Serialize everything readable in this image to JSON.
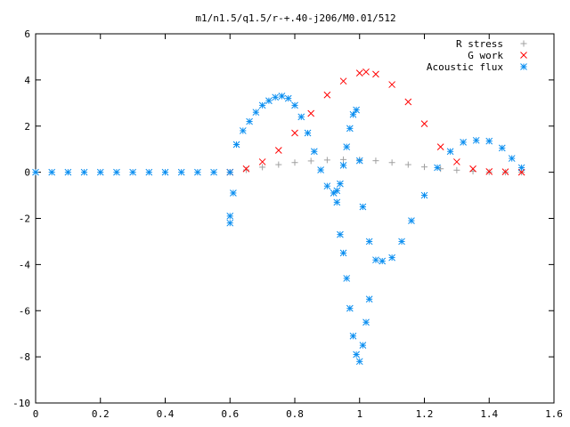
{
  "chart_data": {
    "type": "scatter",
    "title": "m1/n1.5/q1.5/r-+.40-j206/M0.01/512",
    "xlabel": "",
    "ylabel": "",
    "xlim": [
      0,
      1.6
    ],
    "ylim": [
      -10,
      6
    ],
    "x_ticks": [
      0,
      0.2,
      0.4,
      0.6,
      0.8,
      1,
      1.2,
      1.4,
      1.6
    ],
    "x_tick_labels": [
      "0",
      "0.2",
      "0.4",
      "0.6",
      "0.8",
      "1",
      "1.2",
      "1.4",
      "1.6"
    ],
    "y_ticks": [
      -10,
      -8,
      -6,
      -4,
      -2,
      0,
      2,
      4,
      6
    ],
    "y_tick_labels": [
      "-10",
      "-8",
      "-6",
      "-4",
      "-2",
      "0",
      "2",
      "4",
      "6"
    ],
    "grid": false,
    "legend_position": "top-right",
    "series": [
      {
        "name": "R stress",
        "marker": "+",
        "color": "#a0a0a0",
        "x": [
          0.6,
          0.65,
          0.7,
          0.75,
          0.8,
          0.85,
          0.9,
          0.95,
          1.0,
          1.05,
          1.1,
          1.15,
          1.2,
          1.25,
          1.3,
          1.35,
          1.4,
          1.45,
          1.5
        ],
        "y": [
          0.0,
          0.1,
          0.22,
          0.33,
          0.42,
          0.49,
          0.53,
          0.55,
          0.54,
          0.5,
          0.42,
          0.33,
          0.23,
          0.15,
          0.09,
          0.04,
          0.01,
          0.0,
          0.0
        ]
      },
      {
        "name": "G work",
        "marker": "x",
        "color": "#ff0000",
        "x": [
          0.6,
          0.65,
          0.7,
          0.75,
          0.8,
          0.85,
          0.9,
          0.95,
          1.0,
          1.02,
          1.05,
          1.1,
          1.15,
          1.2,
          1.25,
          1.3,
          1.35,
          1.4,
          1.45,
          1.5
        ],
        "y": [
          0.0,
          0.15,
          0.45,
          0.95,
          1.7,
          2.55,
          3.35,
          3.95,
          4.3,
          4.35,
          4.25,
          3.8,
          3.05,
          2.1,
          1.1,
          0.45,
          0.15,
          0.03,
          0.02,
          0.0
        ]
      },
      {
        "name": "Acoustic flux",
        "marker": "*",
        "color": "#0a8ef0",
        "x": [
          0.0,
          0.05,
          0.1,
          0.15,
          0.2,
          0.25,
          0.3,
          0.35,
          0.4,
          0.45,
          0.5,
          0.55,
          0.6,
          0.6,
          0.6,
          0.61,
          0.62,
          0.64,
          0.66,
          0.68,
          0.7,
          0.72,
          0.74,
          0.76,
          0.78,
          0.8,
          0.82,
          0.84,
          0.86,
          0.88,
          0.9,
          0.92,
          0.93,
          0.94,
          0.95,
          0.96,
          0.97,
          0.98,
          0.99,
          1.0,
          1.01,
          1.03,
          1.05,
          1.07,
          1.1,
          1.13,
          1.16,
          1.2,
          1.24,
          1.28,
          1.32,
          1.36,
          1.4,
          1.44,
          1.47,
          1.5,
          0.93,
          0.94,
          0.95,
          0.96,
          0.97,
          0.98,
          0.99,
          1.0,
          1.01,
          1.02,
          1.03
        ],
        "y": [
          0.0,
          0.0,
          0.0,
          0.0,
          0.0,
          0.0,
          0.0,
          0.0,
          0.0,
          0.0,
          0.0,
          0.0,
          0.0,
          -1.9,
          -2.2,
          -0.9,
          1.2,
          1.8,
          2.2,
          2.6,
          2.9,
          3.1,
          3.25,
          3.3,
          3.2,
          2.9,
          2.4,
          1.7,
          0.9,
          0.1,
          -0.6,
          -0.9,
          -0.8,
          -0.5,
          0.3,
          1.1,
          1.9,
          2.5,
          2.7,
          0.5,
          -1.5,
          -3.0,
          -3.8,
          -3.85,
          -3.7,
          -3.0,
          -2.1,
          -1.0,
          0.2,
          0.9,
          1.3,
          1.38,
          1.35,
          1.05,
          0.6,
          0.2,
          -1.3,
          -2.7,
          -3.5,
          -4.6,
          -5.9,
          -7.1,
          -7.9,
          -8.2,
          -7.5,
          -6.5,
          -5.5
        ]
      }
    ]
  }
}
